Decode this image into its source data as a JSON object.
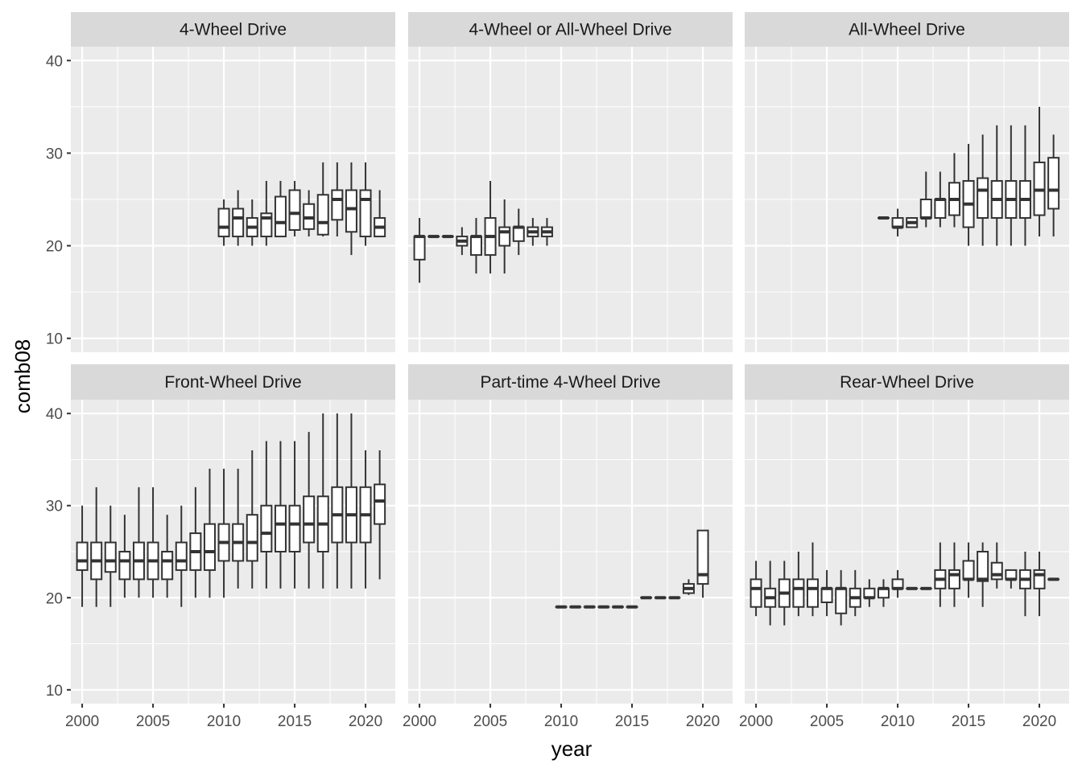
{
  "chart_data": {
    "type": "boxplot",
    "xlabel": "year",
    "ylabel": "comb08",
    "ylim": [
      8.5,
      41.5
    ],
    "xlim": [
      1999.2,
      2022.1
    ],
    "y_ticks": [
      10,
      20,
      30,
      40
    ],
    "x_ticks": [
      2000,
      2005,
      2010,
      2015,
      2020
    ],
    "grid": true,
    "facets": [
      {
        "title": "4-Wheel Drive",
        "boxes": [
          {
            "x": 2010,
            "min": 20,
            "q1": 21,
            "median": 22,
            "q3": 24,
            "max": 25
          },
          {
            "x": 2011,
            "min": 20,
            "q1": 21,
            "median": 23,
            "q3": 24,
            "max": 26
          },
          {
            "x": 2012,
            "min": 20,
            "q1": 21,
            "median": 22,
            "q3": 23,
            "max": 25
          },
          {
            "x": 2013,
            "min": 20,
            "q1": 21,
            "median": 23,
            "q3": 23.5,
            "max": 27
          },
          {
            "x": 2014,
            "min": 21,
            "q1": 21,
            "median": 22.5,
            "q3": 25.3,
            "max": 27
          },
          {
            "x": 2015,
            "min": 21,
            "q1": 21.7,
            "median": 23.5,
            "q3": 26,
            "max": 27
          },
          {
            "x": 2016,
            "min": 21,
            "q1": 21.8,
            "median": 23,
            "q3": 24.5,
            "max": 26
          },
          {
            "x": 2017,
            "min": 21,
            "q1": 21.2,
            "median": 22.5,
            "q3": 25.5,
            "max": 29
          },
          {
            "x": 2018,
            "min": 21,
            "q1": 22.8,
            "median": 25,
            "q3": 26,
            "max": 29
          },
          {
            "x": 2019,
            "min": 19,
            "q1": 21.5,
            "median": 24,
            "q3": 26,
            "max": 29
          },
          {
            "x": 2020,
            "min": 20,
            "q1": 21,
            "median": 25,
            "q3": 26,
            "max": 29
          },
          {
            "x": 2021,
            "min": 21,
            "q1": 21,
            "median": 22,
            "q3": 23,
            "max": 26
          }
        ]
      },
      {
        "title": "4-Wheel or All-Wheel Drive",
        "boxes": [
          {
            "x": 2000,
            "min": 16,
            "q1": 18.5,
            "median": 21,
            "q3": 21,
            "max": 23
          },
          {
            "x": 2001,
            "min": 21,
            "q1": 21,
            "median": 21,
            "q3": 21,
            "max": 21
          },
          {
            "x": 2002,
            "min": 21,
            "q1": 21,
            "median": 21,
            "q3": 21,
            "max": 21
          },
          {
            "x": 2003,
            "min": 19,
            "q1": 20,
            "median": 20.5,
            "q3": 21,
            "max": 22
          },
          {
            "x": 2004,
            "min": 17,
            "q1": 19,
            "median": 21,
            "q3": 21,
            "max": 23
          },
          {
            "x": 2005,
            "min": 17,
            "q1": 19,
            "median": 21,
            "q3": 23,
            "max": 27
          },
          {
            "x": 2006,
            "min": 17,
            "q1": 20,
            "median": 21.5,
            "q3": 22,
            "max": 25
          },
          {
            "x": 2007,
            "min": 19,
            "q1": 20.5,
            "median": 22,
            "q3": 22,
            "max": 24
          },
          {
            "x": 2008,
            "min": 20,
            "q1": 21,
            "median": 21.5,
            "q3": 22,
            "max": 23
          },
          {
            "x": 2009,
            "min": 20,
            "q1": 21,
            "median": 21.5,
            "q3": 22,
            "max": 23
          }
        ]
      },
      {
        "title": "All-Wheel Drive",
        "boxes": [
          {
            "x": 2009,
            "min": 23,
            "q1": 23,
            "median": 23,
            "q3": 23,
            "max": 23
          },
          {
            "x": 2010,
            "min": 21,
            "q1": 22,
            "median": 22,
            "q3": 23,
            "max": 24
          },
          {
            "x": 2011,
            "min": 22,
            "q1": 22,
            "median": 22.5,
            "q3": 23,
            "max": 23
          },
          {
            "x": 2012,
            "min": 22,
            "q1": 23,
            "median": 23,
            "q3": 25,
            "max": 28
          },
          {
            "x": 2013,
            "min": 22,
            "q1": 23,
            "median": 25,
            "q3": 25,
            "max": 28
          },
          {
            "x": 2014,
            "min": 22,
            "q1": 23.3,
            "median": 25,
            "q3": 26.8,
            "max": 30
          },
          {
            "x": 2015,
            "min": 20,
            "q1": 22,
            "median": 24.5,
            "q3": 27,
            "max": 31
          },
          {
            "x": 2016,
            "min": 20,
            "q1": 23,
            "median": 26,
            "q3": 27.3,
            "max": 32
          },
          {
            "x": 2017,
            "min": 20,
            "q1": 23,
            "median": 25,
            "q3": 27,
            "max": 33
          },
          {
            "x": 2018,
            "min": 20,
            "q1": 23,
            "median": 25,
            "q3": 27,
            "max": 33
          },
          {
            "x": 2019,
            "min": 20,
            "q1": 23,
            "median": 25,
            "q3": 27,
            "max": 33
          },
          {
            "x": 2020,
            "min": 21,
            "q1": 23.3,
            "median": 26,
            "q3": 29,
            "max": 35
          },
          {
            "x": 2021,
            "min": 21,
            "q1": 24,
            "median": 26,
            "q3": 29.5,
            "max": 32
          }
        ]
      },
      {
        "title": "Front-Wheel Drive",
        "boxes": [
          {
            "x": 2000,
            "min": 19,
            "q1": 23,
            "median": 24,
            "q3": 26,
            "max": 30
          },
          {
            "x": 2001,
            "min": 19,
            "q1": 22,
            "median": 24,
            "q3": 26,
            "max": 32
          },
          {
            "x": 2002,
            "min": 19,
            "q1": 22.8,
            "median": 24,
            "q3": 26,
            "max": 30
          },
          {
            "x": 2003,
            "min": 20,
            "q1": 22,
            "median": 24,
            "q3": 25,
            "max": 29
          },
          {
            "x": 2004,
            "min": 20,
            "q1": 22,
            "median": 24,
            "q3": 26,
            "max": 32
          },
          {
            "x": 2005,
            "min": 20,
            "q1": 22,
            "median": 24,
            "q3": 26,
            "max": 32
          },
          {
            "x": 2006,
            "min": 20,
            "q1": 22,
            "median": 24,
            "q3": 25,
            "max": 29
          },
          {
            "x": 2007,
            "min": 19,
            "q1": 23,
            "median": 24,
            "q3": 26,
            "max": 30
          },
          {
            "x": 2008,
            "min": 20,
            "q1": 23,
            "median": 25,
            "q3": 27,
            "max": 32
          },
          {
            "x": 2009,
            "min": 20,
            "q1": 23,
            "median": 25,
            "q3": 28,
            "max": 34
          },
          {
            "x": 2010,
            "min": 20,
            "q1": 24,
            "median": 26,
            "q3": 28,
            "max": 34
          },
          {
            "x": 2011,
            "min": 21,
            "q1": 24,
            "median": 26,
            "q3": 28,
            "max": 34
          },
          {
            "x": 2012,
            "min": 21,
            "q1": 24,
            "median": 26,
            "q3": 29,
            "max": 36
          },
          {
            "x": 2013,
            "min": 21,
            "q1": 25,
            "median": 27,
            "q3": 30,
            "max": 37
          },
          {
            "x": 2014,
            "min": 21,
            "q1": 25,
            "median": 28,
            "q3": 30,
            "max": 37
          },
          {
            "x": 2015,
            "min": 21,
            "q1": 25,
            "median": 28,
            "q3": 30,
            "max": 37
          },
          {
            "x": 2016,
            "min": 21,
            "q1": 26,
            "median": 28,
            "q3": 31,
            "max": 38
          },
          {
            "x": 2017,
            "min": 21,
            "q1": 25,
            "median": 28,
            "q3": 31,
            "max": 40
          },
          {
            "x": 2018,
            "min": 21,
            "q1": 26,
            "median": 29,
            "q3": 32,
            "max": 40
          },
          {
            "x": 2019,
            "min": 21,
            "q1": 26,
            "median": 29,
            "q3": 32,
            "max": 40
          },
          {
            "x": 2020,
            "min": 21,
            "q1": 26,
            "median": 29,
            "q3": 32,
            "max": 36
          },
          {
            "x": 2021,
            "min": 22,
            "q1": 28,
            "median": 30.5,
            "q3": 32.3,
            "max": 36
          }
        ]
      },
      {
        "title": "Part-time 4-Wheel Drive",
        "boxes": [
          {
            "x": 2010,
            "min": 19,
            "q1": 19,
            "median": 19,
            "q3": 19,
            "max": 19
          },
          {
            "x": 2011,
            "min": 19,
            "q1": 19,
            "median": 19,
            "q3": 19,
            "max": 19
          },
          {
            "x": 2012,
            "min": 19,
            "q1": 19,
            "median": 19,
            "q3": 19,
            "max": 19
          },
          {
            "x": 2013,
            "min": 19,
            "q1": 19,
            "median": 19,
            "q3": 19,
            "max": 19
          },
          {
            "x": 2014,
            "min": 19,
            "q1": 19,
            "median": 19,
            "q3": 19,
            "max": 19
          },
          {
            "x": 2015,
            "min": 19,
            "q1": 19,
            "median": 19,
            "q3": 19,
            "max": 19
          },
          {
            "x": 2016,
            "min": 20,
            "q1": 20,
            "median": 20,
            "q3": 20,
            "max": 20
          },
          {
            "x": 2017,
            "min": 20,
            "q1": 20,
            "median": 20,
            "q3": 20,
            "max": 20
          },
          {
            "x": 2018,
            "min": 20,
            "q1": 20,
            "median": 20,
            "q3": 20,
            "max": 20
          },
          {
            "x": 2019,
            "min": 20.3,
            "q1": 20.5,
            "median": 21,
            "q3": 21.5,
            "max": 22
          },
          {
            "x": 2020,
            "min": 20,
            "q1": 21.5,
            "median": 22.5,
            "q3": 27.3,
            "max": 27.3
          }
        ]
      },
      {
        "title": "Rear-Wheel Drive",
        "boxes": [
          {
            "x": 2000,
            "min": 18,
            "q1": 19,
            "median": 21,
            "q3": 22,
            "max": 24
          },
          {
            "x": 2001,
            "min": 17,
            "q1": 19,
            "median": 20,
            "q3": 21,
            "max": 24
          },
          {
            "x": 2002,
            "min": 17,
            "q1": 19,
            "median": 20.5,
            "q3": 22,
            "max": 24
          },
          {
            "x": 2003,
            "min": 18,
            "q1": 19,
            "median": 21,
            "q3": 22,
            "max": 25
          },
          {
            "x": 2004,
            "min": 18,
            "q1": 19,
            "median": 21,
            "q3": 22,
            "max": 26
          },
          {
            "x": 2005,
            "min": 18,
            "q1": 19.5,
            "median": 21,
            "q3": 21,
            "max": 23
          },
          {
            "x": 2006,
            "min": 17,
            "q1": 18.3,
            "median": 21,
            "q3": 21,
            "max": 23
          },
          {
            "x": 2007,
            "min": 18,
            "q1": 19,
            "median": 20,
            "q3": 21,
            "max": 23
          },
          {
            "x": 2008,
            "min": 19,
            "q1": 20,
            "median": 20,
            "q3": 21,
            "max": 22
          },
          {
            "x": 2009,
            "min": 19,
            "q1": 20,
            "median": 21,
            "q3": 21,
            "max": 22
          },
          {
            "x": 2010,
            "min": 20,
            "q1": 21,
            "median": 21,
            "q3": 22,
            "max": 23
          },
          {
            "x": 2011,
            "min": 21,
            "q1": 21,
            "median": 21,
            "q3": 21,
            "max": 21
          },
          {
            "x": 2012,
            "min": 21,
            "q1": 21,
            "median": 21,
            "q3": 21,
            "max": 21
          },
          {
            "x": 2013,
            "min": 19,
            "q1": 21,
            "median": 22,
            "q3": 23,
            "max": 26
          },
          {
            "x": 2014,
            "min": 19,
            "q1": 21,
            "median": 22.5,
            "q3": 23,
            "max": 26
          },
          {
            "x": 2015,
            "min": 20,
            "q1": 22,
            "median": 22,
            "q3": 24,
            "max": 26
          },
          {
            "x": 2016,
            "min": 19,
            "q1": 21.8,
            "median": 22,
            "q3": 25,
            "max": 26
          },
          {
            "x": 2017,
            "min": 21,
            "q1": 22,
            "median": 22.5,
            "q3": 23.8,
            "max": 26
          },
          {
            "x": 2018,
            "min": 21,
            "q1": 22,
            "median": 22,
            "q3": 23,
            "max": 23
          },
          {
            "x": 2019,
            "min": 18,
            "q1": 21,
            "median": 22,
            "q3": 23,
            "max": 25
          },
          {
            "x": 2020,
            "min": 18,
            "q1": 21,
            "median": 22.5,
            "q3": 23,
            "max": 25
          },
          {
            "x": 2021,
            "min": 22,
            "q1": 22,
            "median": 22,
            "q3": 22,
            "max": 22
          }
        ]
      }
    ]
  },
  "colors": {
    "panel_background": "#ebebeb",
    "strip_background": "#d9d9d9",
    "grid_line": "#ffffff",
    "box_stroke": "#333333",
    "box_fill": "#ffffff"
  }
}
